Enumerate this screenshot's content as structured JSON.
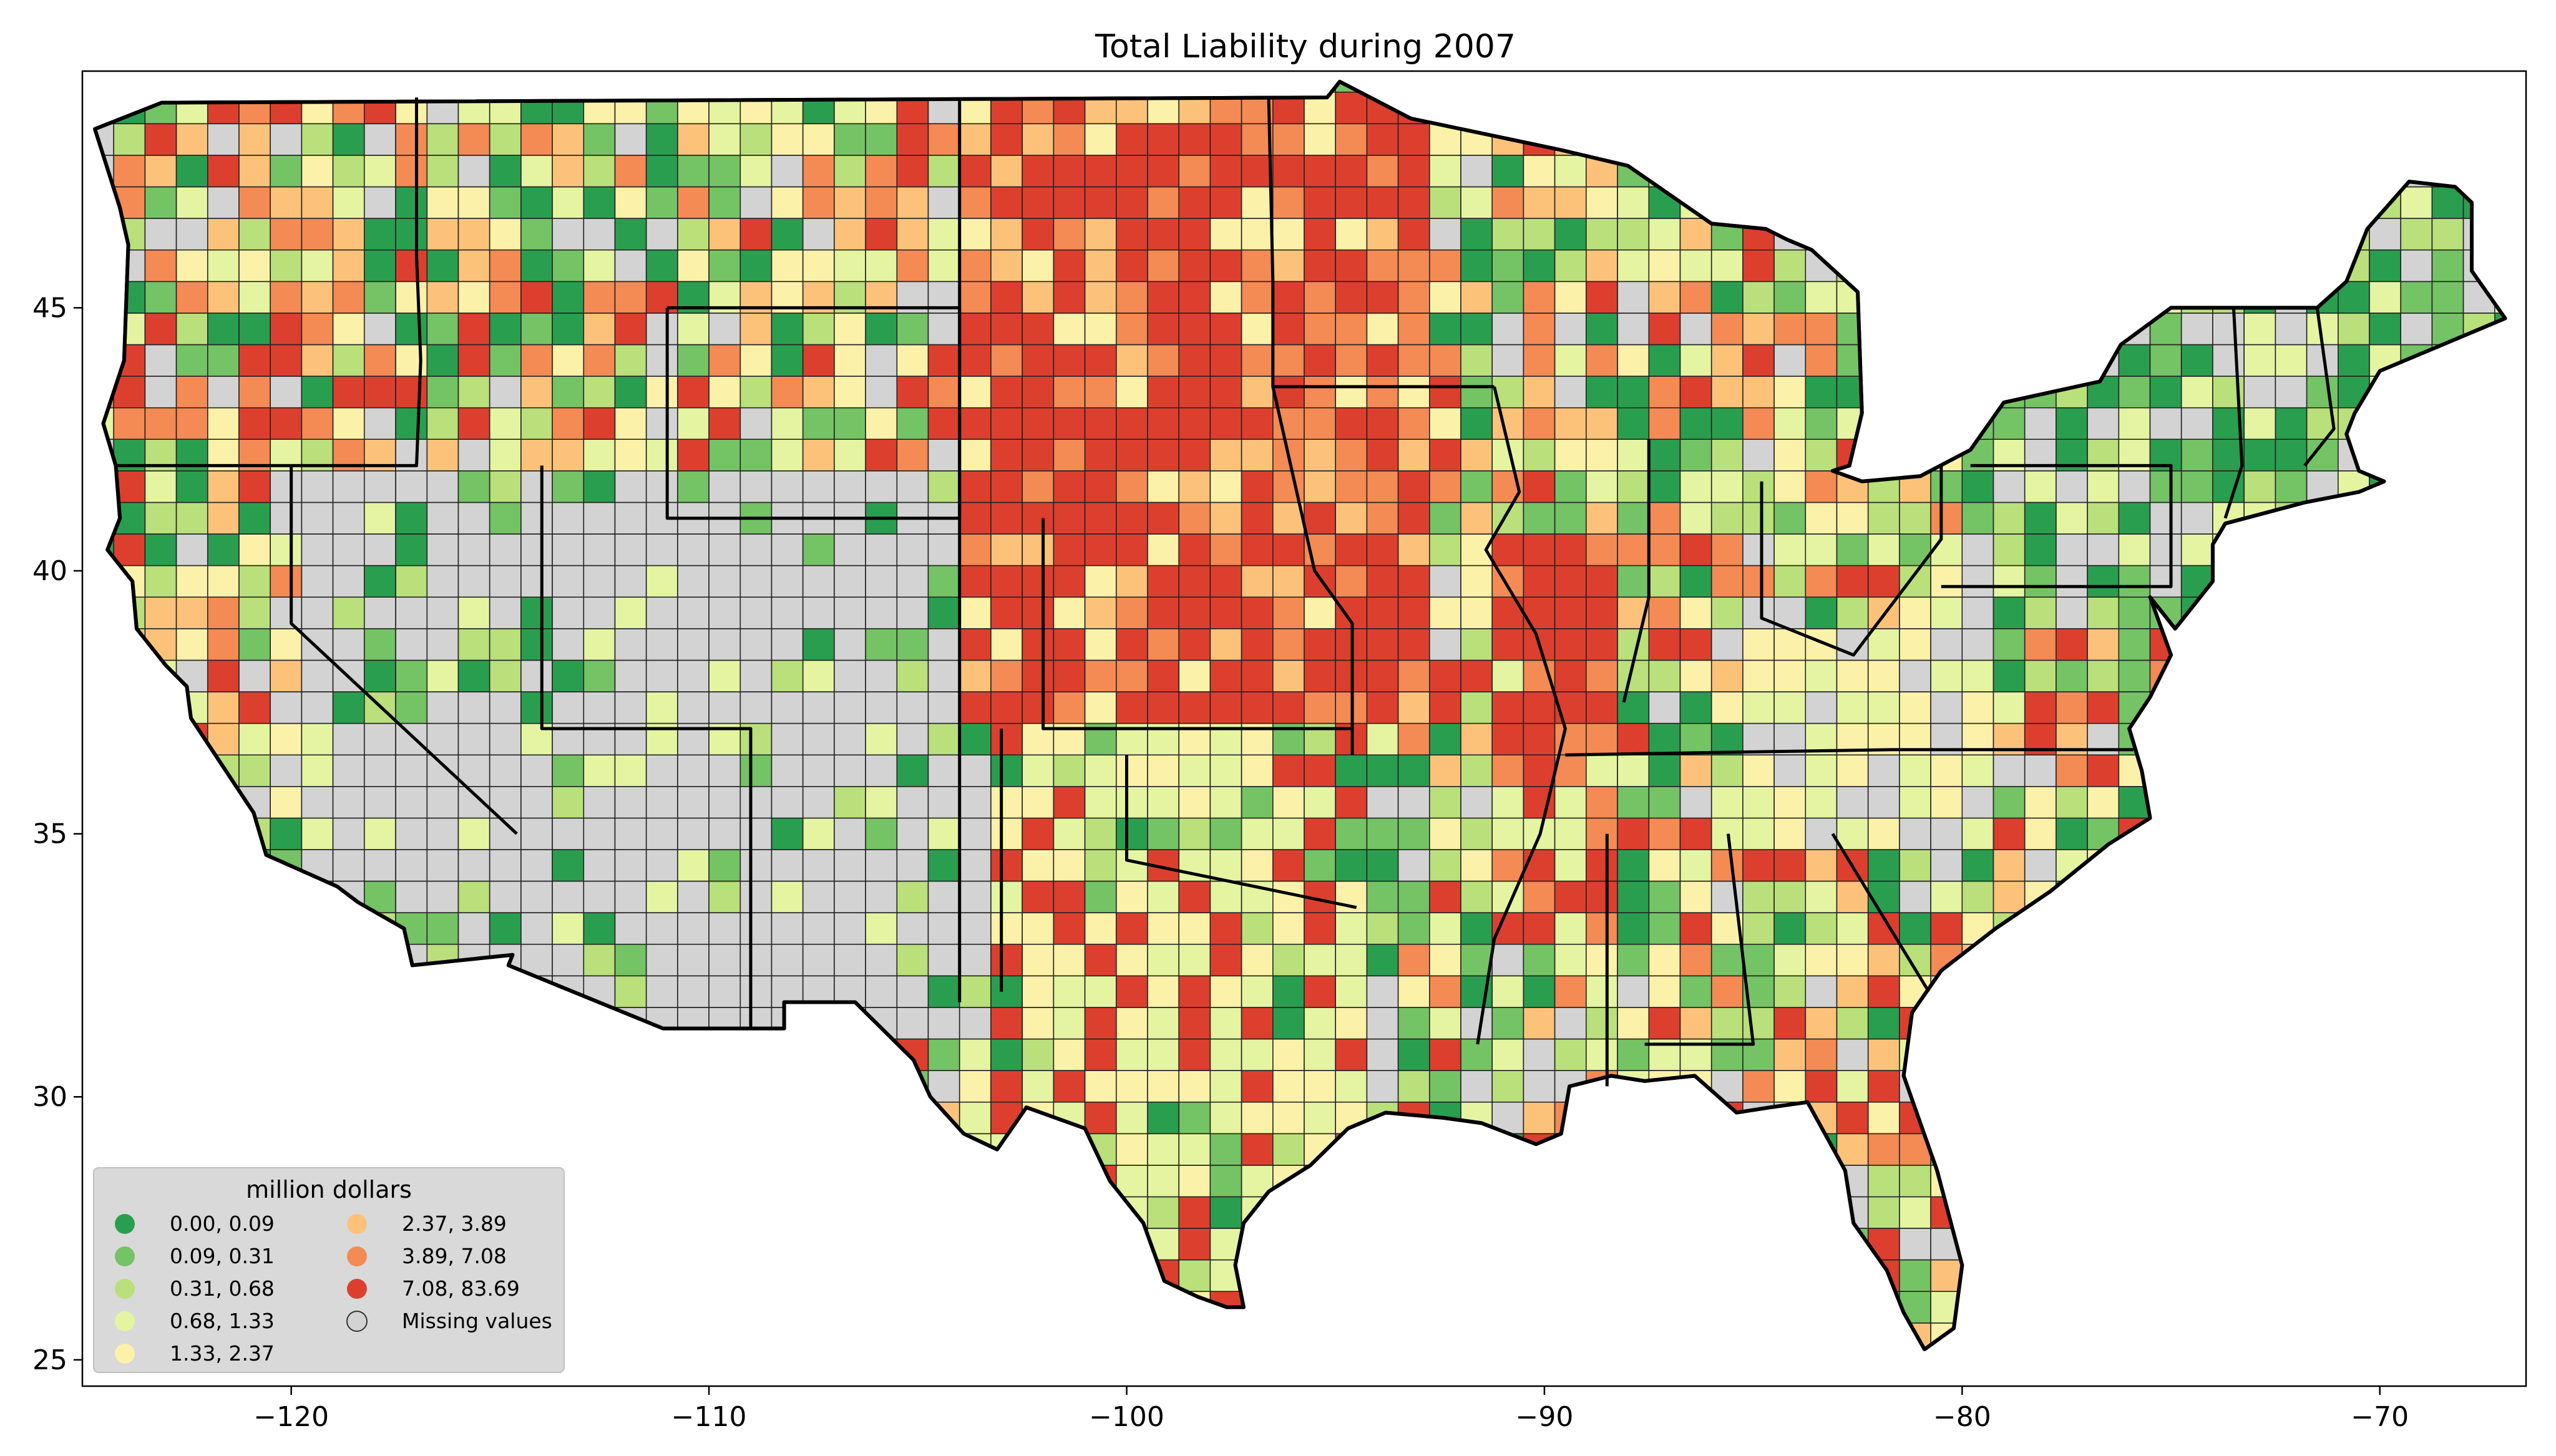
{
  "title": "Total Liability during 2007",
  "x_axis": {
    "range": [
      -125,
      -66.5
    ],
    "ticks": [
      -120,
      -110,
      -100,
      -90,
      -80,
      -70
    ],
    "tick_labels": [
      "−120",
      "−110",
      "−100",
      "−90",
      "−80",
      "−70"
    ]
  },
  "y_axis": {
    "range": [
      24.5,
      49.5
    ],
    "ticks": [
      25,
      30,
      35,
      40,
      45
    ],
    "tick_labels": [
      "25",
      "30",
      "35",
      "40",
      "45"
    ]
  },
  "legend": {
    "title": "million dollars",
    "placement": "lower-left",
    "items": [
      {
        "label": "0.00,  0.09",
        "color": "#2a9e4f"
      },
      {
        "label": "0.09,  0.31",
        "color": "#74c365"
      },
      {
        "label": "0.31,  0.68",
        "color": "#b9e07a"
      },
      {
        "label": "0.68,  1.33",
        "color": "#e4f4a1"
      },
      {
        "label": "1.33,  2.37",
        "color": "#fcf1a8"
      },
      {
        "label": "2.37,  3.89",
        "color": "#fdc27a"
      },
      {
        "label": "3.89,  7.08",
        "color": "#f48a54"
      },
      {
        "label": "7.08, 83.69",
        "color": "#dd3f2f"
      },
      {
        "label": "Missing values",
        "color": "#d3d3d3"
      }
    ]
  },
  "missing_color": "#d3d3d3",
  "ocean_color": "#ffffff"
}
